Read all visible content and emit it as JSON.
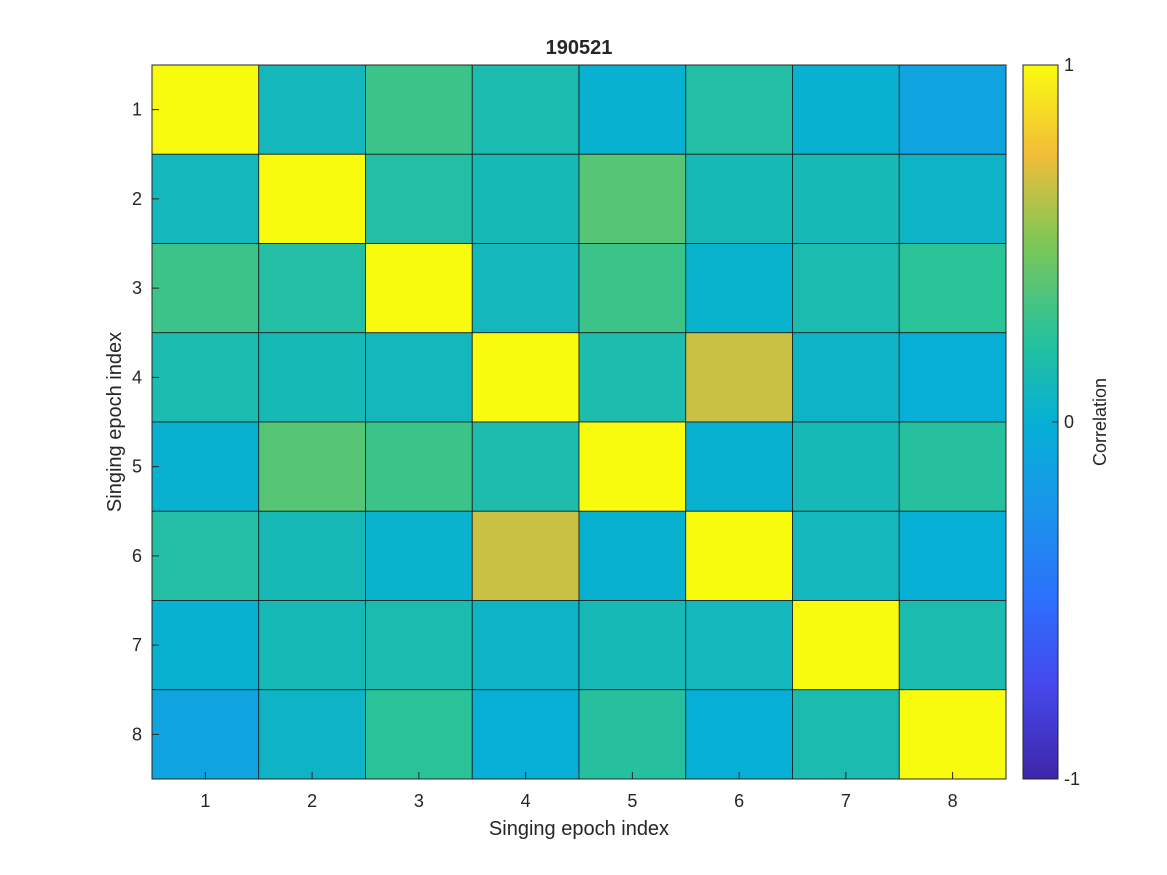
{
  "chart_data": {
    "type": "heatmap",
    "title": "190521",
    "xlabel": "Singing epoch index",
    "ylabel": "Singing epoch index",
    "x_categories": [
      "1",
      "2",
      "3",
      "4",
      "5",
      "6",
      "7",
      "8"
    ],
    "y_categories": [
      "1",
      "2",
      "3",
      "4",
      "5",
      "6",
      "7",
      "8"
    ],
    "values": [
      [
        1.0,
        0.1,
        0.3,
        0.15,
        0.02,
        0.2,
        0.02,
        -0.12
      ],
      [
        0.1,
        1.0,
        0.2,
        0.12,
        0.38,
        0.12,
        0.12,
        0.06
      ],
      [
        0.3,
        0.2,
        1.0,
        0.1,
        0.3,
        0.03,
        0.15,
        0.25
      ],
      [
        0.15,
        0.12,
        0.1,
        1.0,
        0.16,
        0.66,
        0.06,
        -0.02
      ],
      [
        0.02,
        0.38,
        0.3,
        0.16,
        1.0,
        0.02,
        0.12,
        0.22
      ],
      [
        0.2,
        0.12,
        0.03,
        0.66,
        0.02,
        1.0,
        0.1,
        -0.01
      ],
      [
        0.02,
        0.12,
        0.15,
        0.06,
        0.12,
        0.1,
        1.0,
        0.15
      ],
      [
        -0.12,
        0.06,
        0.25,
        -0.02,
        0.22,
        -0.01,
        0.15,
        1.0
      ]
    ],
    "colorbar": {
      "label": "Correlation",
      "range": [
        -1,
        1
      ],
      "ticks": [
        1,
        0,
        -1
      ],
      "tick_labels": [
        "1",
        "0",
        "-1"
      ],
      "colormap": "parula"
    },
    "grid": false
  }
}
